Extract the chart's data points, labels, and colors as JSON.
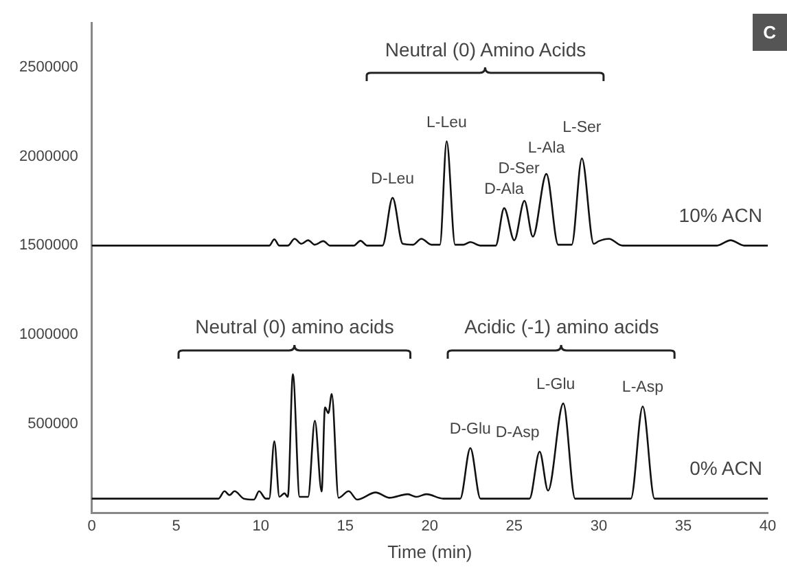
{
  "chart_data": {
    "type": "line",
    "xlabel": "Time (min)",
    "xlim": [
      0,
      40
    ],
    "xticks": [
      0,
      5,
      10,
      15,
      20,
      25,
      30,
      35,
      40
    ],
    "ylim": [
      0,
      2750000
    ],
    "yticks": [
      500000,
      1000000,
      1500000,
      2000000,
      2500000
    ],
    "grid": false,
    "legend": false,
    "series": [
      {
        "name": "10% ACN",
        "color": "#111111",
        "x": [
          0,
          10.5,
          10.8,
          11.1,
          11.6,
          12.0,
          12.4,
          12.8,
          13.2,
          13.7,
          14.1,
          15.5,
          15.9,
          16.3,
          17.2,
          17.8,
          18.4,
          19.0,
          19.5,
          20.1,
          20.6,
          21.0,
          21.5,
          22.0,
          22.4,
          23.0,
          23.9,
          24.4,
          25.0,
          25.6,
          26.1,
          26.9,
          27.6,
          28.4,
          29.0,
          29.7,
          30.0,
          30.6,
          31.4,
          37.0,
          37.8,
          38.6,
          40
        ],
        "values": [
          1500000,
          1500000,
          1535000,
          1500000,
          1500000,
          1538000,
          1510000,
          1530000,
          1505000,
          1525000,
          1500000,
          1500000,
          1527000,
          1500000,
          1500000,
          1768000,
          1510000,
          1505000,
          1538000,
          1505000,
          1505000,
          2085000,
          1505000,
          1505000,
          1520000,
          1500000,
          1500000,
          1710000,
          1530000,
          1751000,
          1550000,
          1902000,
          1505000,
          1505000,
          1989000,
          1510000,
          1525000,
          1538000,
          1500000,
          1500000,
          1530000,
          1500000,
          1500000
        ]
      },
      {
        "name": "0% ACN",
        "color": "#111111",
        "x": [
          0,
          7.5,
          7.85,
          8.15,
          8.45,
          9.0,
          9.6,
          9.9,
          10.3,
          10.5,
          10.8,
          11.1,
          11.4,
          11.6,
          11.9,
          12.3,
          12.8,
          13.2,
          13.6,
          13.8,
          14.0,
          14.2,
          14.6,
          15.2,
          15.7,
          16.8,
          17.6,
          18.7,
          19.2,
          19.8,
          20.8,
          21.8,
          22.4,
          23.0,
          25.9,
          26.5,
          27.0,
          27.9,
          28.6,
          31.9,
          32.6,
          33.3,
          40
        ],
        "values": [
          80000,
          80000,
          122000,
          100000,
          122000,
          80000,
          75000,
          122000,
          80000,
          80000,
          402000,
          90000,
          110000,
          90000,
          778000,
          90000,
          90000,
          517000,
          120000,
          592000,
          560000,
          667000,
          85000,
          122000,
          75000,
          115000,
          85000,
          105000,
          90000,
          105000,
          80000,
          80000,
          364000,
          80000,
          80000,
          344000,
          125000,
          614000,
          80000,
          80000,
          597000,
          80000,
          80000
        ]
      }
    ],
    "annotations": [
      "C",
      "Neutral (0) Amino Acids",
      "Neutral (0) amino acids",
      "Acidic (-1) amino acids",
      {
        "text": "D-Leu",
        "x": 17.8,
        "y": 1768000
      },
      {
        "text": "L-Leu",
        "x": 21.0,
        "y": 2085000
      },
      {
        "text": "D-Ala",
        "x": 24.4,
        "y": 1710000
      },
      {
        "text": "D-Ser",
        "x": 25.6,
        "y": 1751000
      },
      {
        "text": "L-Ala",
        "x": 26.9,
        "y": 1902000
      },
      {
        "text": "L-Ser",
        "x": 29.0,
        "y": 1989000
      },
      {
        "text": "D-Glu",
        "x": 22.4,
        "y": 364000
      },
      {
        "text": "D-Asp",
        "x": 26.5,
        "y": 344000
      },
      {
        "text": "L-Glu",
        "x": 27.9,
        "y": 614000
      },
      {
        "text": "L-Asp",
        "x": 32.6,
        "y": 597000
      }
    ]
  }
}
